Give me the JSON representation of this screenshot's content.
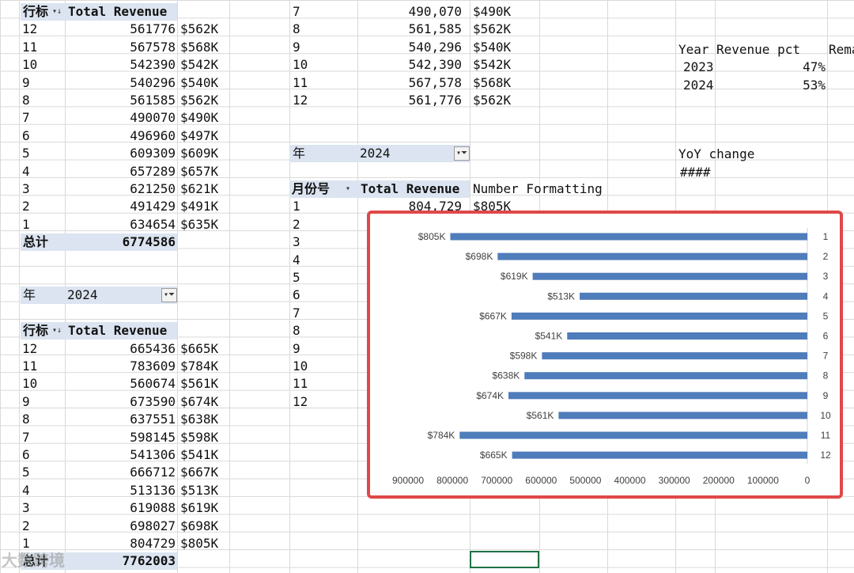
{
  "pivot_2023": {
    "header_label": "行标",
    "header_value": "Total Revenue",
    "rows": [
      {
        "month": "12",
        "value": "561776",
        "fmt": "$562K"
      },
      {
        "month": "11",
        "value": "567578",
        "fmt": "$568K"
      },
      {
        "month": "10",
        "value": "542390",
        "fmt": "$542K"
      },
      {
        "month": "9",
        "value": "540296",
        "fmt": "$540K"
      },
      {
        "month": "8",
        "value": "561585",
        "fmt": "$562K"
      },
      {
        "month": "7",
        "value": "490070",
        "fmt": "$490K"
      },
      {
        "month": "6",
        "value": "496960",
        "fmt": "$497K"
      },
      {
        "month": "5",
        "value": "609309",
        "fmt": "$609K"
      },
      {
        "month": "4",
        "value": "657289",
        "fmt": "$657K"
      },
      {
        "month": "3",
        "value": "621250",
        "fmt": "$621K"
      },
      {
        "month": "2",
        "value": "491429",
        "fmt": "$491K"
      },
      {
        "month": "1",
        "value": "634654",
        "fmt": "$635K"
      }
    ],
    "total_label": "总计",
    "total_value": "6774586"
  },
  "filter_2024_left": {
    "label": "年",
    "value": "2024"
  },
  "pivot_2024": {
    "header_label": "行标",
    "header_value": "Total Revenue",
    "rows": [
      {
        "month": "12",
        "value": "665436",
        "fmt": "$665K"
      },
      {
        "month": "11",
        "value": "783609",
        "fmt": "$784K"
      },
      {
        "month": "10",
        "value": "560674",
        "fmt": "$561K"
      },
      {
        "month": "9",
        "value": "673590",
        "fmt": "$674K"
      },
      {
        "month": "8",
        "value": "637551",
        "fmt": "$638K"
      },
      {
        "month": "7",
        "value": "598145",
        "fmt": "$598K"
      },
      {
        "month": "6",
        "value": "541306",
        "fmt": "$541K"
      },
      {
        "month": "5",
        "value": "666712",
        "fmt": "$667K"
      },
      {
        "month": "4",
        "value": "513136",
        "fmt": "$513K"
      },
      {
        "month": "3",
        "value": "619088",
        "fmt": "$619K"
      },
      {
        "month": "2",
        "value": "698027",
        "fmt": "$698K"
      },
      {
        "month": "1",
        "value": "804729",
        "fmt": "$805K"
      }
    ],
    "total_label": "总计",
    "total_value": "7762003"
  },
  "middle_top": {
    "rows": [
      {
        "month": "7",
        "value": "490,070",
        "fmt": "$490K"
      },
      {
        "month": "8",
        "value": "561,585",
        "fmt": "$562K"
      },
      {
        "month": "9",
        "value": "540,296",
        "fmt": "$540K"
      },
      {
        "month": "10",
        "value": "542,390",
        "fmt": "$542K"
      },
      {
        "month": "11",
        "value": "567,578",
        "fmt": "$568K"
      },
      {
        "month": "12",
        "value": "561,776",
        "fmt": "$562K"
      }
    ]
  },
  "filter_2024_mid": {
    "label": "年",
    "value": "2024"
  },
  "middle_pivot": {
    "header_label": "月份号",
    "header_value": "Total Revenue",
    "header_extra": "Number Formatting",
    "first_row": {
      "month": "1",
      "value": "804,729",
      "fmt": "$805K"
    },
    "months": [
      "2",
      "3",
      "4",
      "5",
      "6",
      "7",
      "8",
      "9",
      "10",
      "11",
      "12"
    ]
  },
  "right_table": {
    "headers": [
      "Year",
      "Revenue pct",
      "Rema"
    ],
    "rows": [
      {
        "year": "2023",
        "pct": "47%"
      },
      {
        "year": "2024",
        "pct": "53%"
      }
    ],
    "yoy_label": "YoY change",
    "yoy_value": "####"
  },
  "watermark": "大数跨境",
  "chart_data": {
    "type": "bar",
    "orientation": "horizontal",
    "x_axis_reversed": true,
    "categories": [
      "1",
      "2",
      "3",
      "4",
      "5",
      "6",
      "7",
      "8",
      "9",
      "10",
      "11",
      "12"
    ],
    "values": [
      804729,
      698027,
      619088,
      513136,
      666712,
      541306,
      598145,
      637551,
      673590,
      560674,
      783609,
      665436
    ],
    "data_labels": [
      "$805K",
      "$698K",
      "$619K",
      "$513K",
      "$667K",
      "$541K",
      "$598K",
      "$638K",
      "$674K",
      "$561K",
      "$784K",
      "$665K"
    ],
    "x_ticks": [
      "900000",
      "800000",
      "700000",
      "600000",
      "500000",
      "400000",
      "300000",
      "200000",
      "100000",
      "0"
    ],
    "xlim": [
      0,
      900000
    ],
    "bar_color": "#4f7cba",
    "grid": false,
    "title": ""
  }
}
